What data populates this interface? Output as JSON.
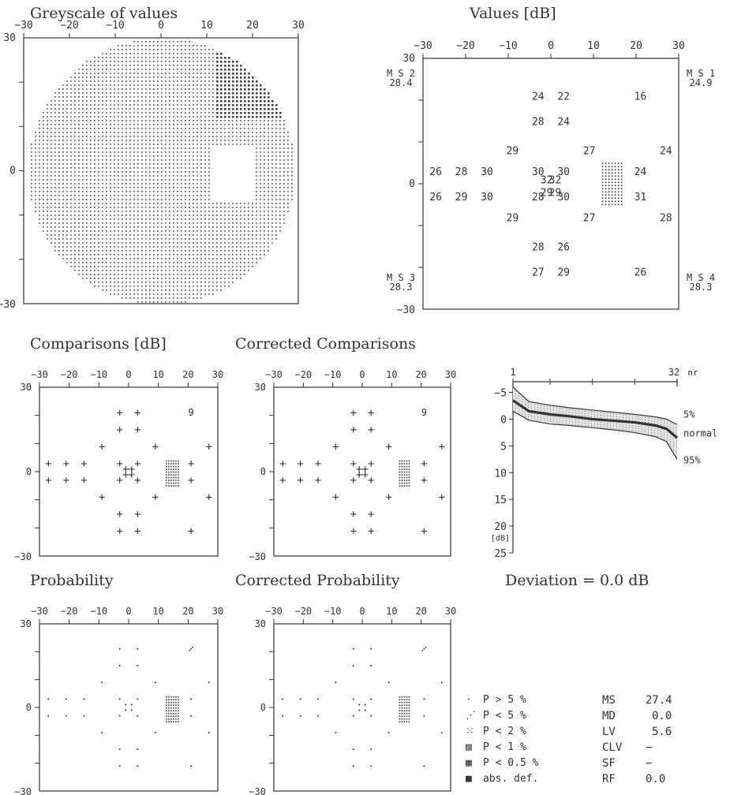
{
  "titles": {
    "greyscale": "Greyscale of values",
    "values": "Values [dB]",
    "comparisons": "Comparisons [dB]",
    "corrected_comparisons": "Corrected Comparisons",
    "probability": "Probability",
    "corrected_probability": "Corrected Probability",
    "deviation": "Deviation = 0.0 dB"
  },
  "axis_ticks": [
    "−30",
    "−20",
    "−10",
    "0",
    "10",
    "20",
    "30"
  ],
  "axis_y_labels": {
    "top": "30",
    "mid": "0",
    "bottom": "−30"
  },
  "mean_sensitivities": {
    "ms1": {
      "label": "M S 1",
      "value": "24.9"
    },
    "ms2": {
      "label": "M S 2",
      "value": "28.4"
    },
    "ms3": {
      "label": "M S 3",
      "value": "28.3"
    },
    "ms4": {
      "label": "M S 4",
      "value": "28.3"
    }
  },
  "values_grid": [
    {
      "x": -3,
      "y": 21,
      "v": "24"
    },
    {
      "x": 3,
      "y": 21,
      "v": "22"
    },
    {
      "x": 21,
      "y": 21,
      "v": "16"
    },
    {
      "x": -3,
      "y": 15,
      "v": "28"
    },
    {
      "x": 3,
      "y": 15,
      "v": "24"
    },
    {
      "x": -9,
      "y": 8,
      "v": "29"
    },
    {
      "x": 9,
      "y": 8,
      "v": "27"
    },
    {
      "x": 27,
      "y": 8,
      "v": "24"
    },
    {
      "x": -27,
      "y": 3,
      "v": "26"
    },
    {
      "x": -21,
      "y": 3,
      "v": "28"
    },
    {
      "x": -15,
      "y": 3,
      "v": "30"
    },
    {
      "x": -3,
      "y": 3,
      "v": "30"
    },
    {
      "x": 3,
      "y": 3,
      "v": "30"
    },
    {
      "x": 21,
      "y": 3,
      "v": "24"
    },
    {
      "x": -1,
      "y": 1,
      "v": "32"
    },
    {
      "x": 1,
      "y": 1,
      "v": "32"
    },
    {
      "x": -1,
      "y": -2,
      "v": "29"
    },
    {
      "x": 1,
      "y": -2,
      "v": "29"
    },
    {
      "x": -27,
      "y": -3,
      "v": "26"
    },
    {
      "x": -21,
      "y": -3,
      "v": "29"
    },
    {
      "x": -15,
      "y": -3,
      "v": "30"
    },
    {
      "x": -3,
      "y": -3,
      "v": "28"
    },
    {
      "x": 3,
      "y": -3,
      "v": "30"
    },
    {
      "x": 21,
      "y": -3,
      "v": "31"
    },
    {
      "x": -9,
      "y": -8,
      "v": "29"
    },
    {
      "x": 9,
      "y": -8,
      "v": "27"
    },
    {
      "x": 27,
      "y": -8,
      "v": "28"
    },
    {
      "x": -3,
      "y": -15,
      "v": "28"
    },
    {
      "x": 3,
      "y": -15,
      "v": "26"
    },
    {
      "x": -3,
      "y": -21,
      "v": "27"
    },
    {
      "x": 3,
      "y": -21,
      "v": "29"
    },
    {
      "x": 21,
      "y": -21,
      "v": "26"
    }
  ],
  "comparisons": {
    "marker": "+",
    "value_point": {
      "x": 21,
      "y": 21,
      "v": "9"
    }
  },
  "deviation_chart": {
    "x_start": "1",
    "x_end": "32",
    "x_unit": "nr",
    "y_ticks": [
      "−5",
      "0",
      "5",
      "10",
      "15",
      "20",
      "25"
    ],
    "y_unit": "[dB]",
    "labels": {
      "p5": "5%",
      "normal": "normal",
      "p95": "95%"
    }
  },
  "legend": [
    {
      "symbol": "·",
      "label": "P > 5 %"
    },
    {
      "symbol": "⋰",
      "label": "P < 5 %"
    },
    {
      "symbol": "⁙",
      "label": "P < 2 %"
    },
    {
      "symbol": "▨",
      "label": "P < 1 %"
    },
    {
      "symbol": "▦",
      "label": "P < 0.5 %"
    },
    {
      "symbol": "■",
      "label": "abs. def."
    }
  ],
  "indices": [
    {
      "key": "MS",
      "value": "27.4"
    },
    {
      "key": "MD",
      "value": "0.0"
    },
    {
      "key": "LV",
      "value": "5.6"
    },
    {
      "key": "CLV",
      "value": "−"
    },
    {
      "key": "SF",
      "value": "−"
    },
    {
      "key": "RF",
      "value": "0.0"
    }
  ],
  "chart_data": {
    "type": "line",
    "title": "",
    "xlabel": "nr",
    "ylabel": "[dB]",
    "x": [
      1,
      4,
      8,
      12,
      16,
      20,
      24,
      28,
      30,
      32
    ],
    "series": [
      {
        "name": "5%",
        "values": [
          -6,
          -3.3,
          -2.6,
          -2.1,
          -1.7,
          -1.3,
          -0.9,
          -0.4,
          0,
          1
        ]
      },
      {
        "name": "normal",
        "values": [
          -3.5,
          -1.5,
          -0.9,
          -0.5,
          0,
          0.3,
          0.6,
          1.2,
          1.8,
          3.5
        ]
      },
      {
        "name": "95%",
        "values": [
          -1.5,
          0.2,
          0.9,
          1.2,
          1.6,
          2,
          2.5,
          3.3,
          4.2,
          7.5
        ]
      }
    ],
    "xlim": [
      1,
      32
    ],
    "ylim": [
      -7,
      25
    ],
    "axis_note": "y axis inverted (negative values at top)"
  },
  "colors": {
    "ink": "#333333",
    "fill": "#555555"
  }
}
